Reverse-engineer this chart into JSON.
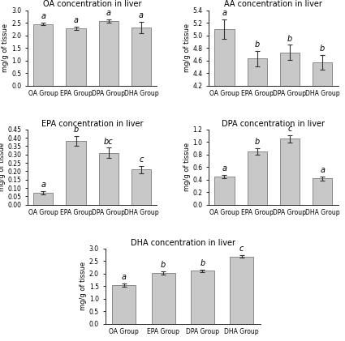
{
  "charts": [
    {
      "title": "OA concentration in liver",
      "ylabel": "mg/g of tissue",
      "groups": [
        "OA Group",
        "EPA Group",
        "DPA Group",
        "DHA Group"
      ],
      "values": [
        2.45,
        2.28,
        2.58,
        2.32
      ],
      "errors": [
        0.05,
        0.06,
        0.06,
        0.22
      ],
      "letters": [
        "a",
        "a",
        "a",
        "a"
      ],
      "ylim": [
        0,
        3
      ],
      "yticks": [
        0,
        0.5,
        1,
        1.5,
        2,
        2.5,
        3
      ]
    },
    {
      "title": "AA concentration in liver",
      "ylabel": "mg/g of tissue",
      "groups": [
        "OA Group",
        "EPA Group",
        "DPA Group",
        "DHA Group"
      ],
      "values": [
        5.1,
        4.63,
        4.73,
        4.57
      ],
      "errors": [
        0.15,
        0.12,
        0.12,
        0.12
      ],
      "letters": [
        "a",
        "b",
        "b",
        "b"
      ],
      "ylim": [
        4.2,
        5.4
      ],
      "yticks": [
        4.2,
        4.4,
        4.6,
        4.8,
        5.0,
        5.2,
        5.4
      ]
    },
    {
      "title": "EPA concentration in liver",
      "ylabel": "mg/g of tissue",
      "groups": [
        "OA Group",
        "EPA Group",
        "DPA Group",
        "DHA Group"
      ],
      "values": [
        0.07,
        0.38,
        0.31,
        0.21
      ],
      "errors": [
        0.01,
        0.03,
        0.03,
        0.02
      ],
      "letters": [
        "a",
        "b",
        "bc",
        "c"
      ],
      "ylim": [
        0,
        0.45
      ],
      "yticks": [
        0,
        0.05,
        0.1,
        0.15,
        0.2,
        0.25,
        0.3,
        0.35,
        0.4,
        0.45
      ]
    },
    {
      "title": "DPA concentration in liver",
      "ylabel": "mg/g of tissue",
      "groups": [
        "OA Group",
        "EPA Group",
        "DPA Group",
        "DHA Group"
      ],
      "values": [
        0.45,
        0.85,
        1.05,
        0.42
      ],
      "errors": [
        0.03,
        0.05,
        0.06,
        0.03
      ],
      "letters": [
        "a",
        "b",
        "c",
        "a"
      ],
      "ylim": [
        0,
        1.2
      ],
      "yticks": [
        0,
        0.2,
        0.4,
        0.6,
        0.8,
        1.0,
        1.2
      ]
    },
    {
      "title": "DHA concentration in liver",
      "ylabel": "mg/g of tissue",
      "groups": [
        "OA Group",
        "EPA Group",
        "DPA Group",
        "DHA Group"
      ],
      "values": [
        1.55,
        2.04,
        2.12,
        2.68
      ],
      "errors": [
        0.06,
        0.06,
        0.05,
        0.05
      ],
      "letters": [
        "a",
        "b",
        "b",
        "c"
      ],
      "ylim": [
        0,
        3
      ],
      "yticks": [
        0,
        0.5,
        1.0,
        1.5,
        2.0,
        2.5,
        3.0
      ]
    }
  ],
  "bar_color": "#c8c8c8",
  "bar_edge_color": "#666666",
  "error_color": "#333333",
  "title_fontsize": 7,
  "label_fontsize": 6,
  "tick_fontsize": 5.5,
  "letter_fontsize": 7
}
